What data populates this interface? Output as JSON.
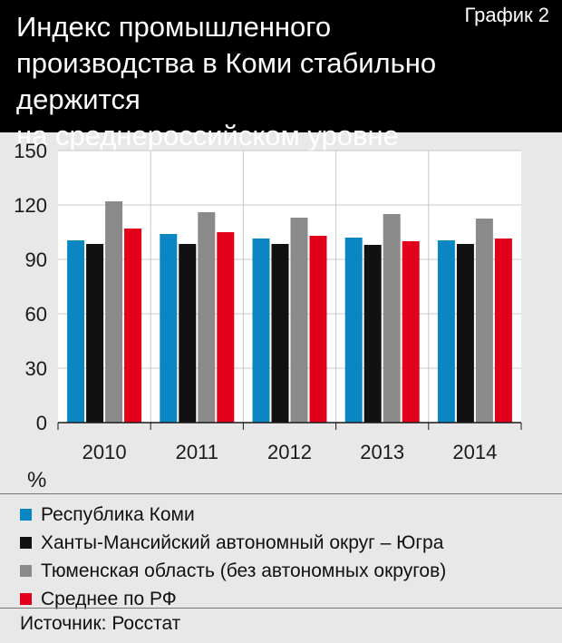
{
  "header": {
    "chart_number": "График 2",
    "title_lines": [
      "Индекс промышленного",
      "производства в Коми стабильно держится",
      "на среднероссийском уровне"
    ]
  },
  "unit_label": "%",
  "source": "Источник: Росстат",
  "colors": {
    "background": "#e8e8e8",
    "header": "#000000",
    "komi": "#0a87c3",
    "khmao": "#111111",
    "tyumen": "#8a8a8a",
    "rf": "#e2001a"
  },
  "chart_data": {
    "type": "bar",
    "categories": [
      "2010",
      "2011",
      "2012",
      "2013",
      "2014"
    ],
    "series": [
      {
        "name": "Республика Коми",
        "color": "#0a87c3",
        "values": [
          100.5,
          104,
          101.5,
          102,
          100.5
        ]
      },
      {
        "name": "Ханты-Мансийский автономный округ – Югра",
        "color": "#111111",
        "values": [
          98.5,
          98.5,
          98.5,
          98,
          98.5
        ]
      },
      {
        "name": "Тюменская область (без автономных округов)",
        "color": "#8a8a8a",
        "values": [
          122,
          116,
          113,
          115,
          112.5
        ]
      },
      {
        "name": "Среднее по РФ",
        "color": "#e2001a",
        "values": [
          107,
          105,
          103,
          100,
          101.5
        ]
      }
    ],
    "ylim": [
      0,
      150
    ],
    "yticks": [
      0,
      30,
      60,
      90,
      120,
      150
    ],
    "ylabel": "%",
    "grid": true,
    "legend_position": "bottom"
  }
}
